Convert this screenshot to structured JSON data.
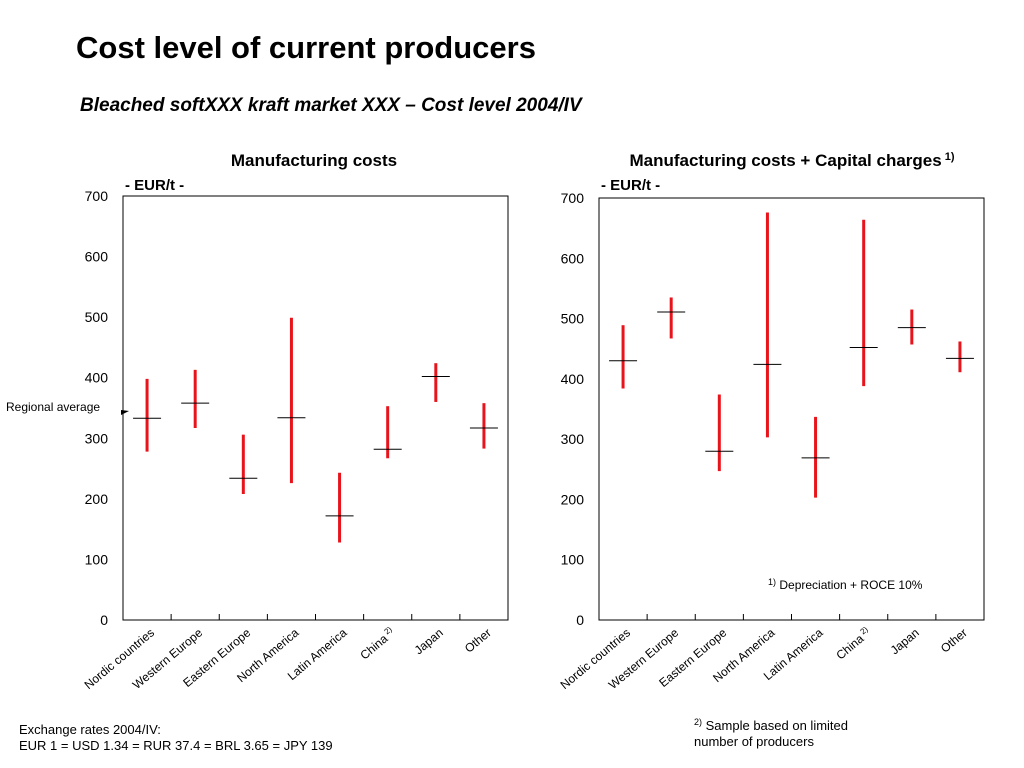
{
  "title": "Cost level of current producers",
  "subtitle": "Bleached softXXX kraft market XXX – Cost level 2004/IV",
  "colors": {
    "range_bar": "#e8141c",
    "average_tick": "#000000",
    "frame": "#000000"
  },
  "annotation": {
    "regional_average": "Regional average"
  },
  "footnotes": {
    "exchange_line1": "Exchange rates 2004/IV:",
    "exchange_line2": "EUR 1 = USD 1.34 = RUR 37.4 = BRL 3.65 = JPY 139",
    "note2_mark": "2)",
    "note2_text": "Sample based on limited",
    "note2_text2": "number of producers"
  },
  "chart_data": [
    {
      "type": "range",
      "title": "Manufacturing costs",
      "title_sup": "",
      "unit_label": "- EUR/t -",
      "ylim": [
        0,
        700
      ],
      "yticks": [
        0,
        100,
        200,
        300,
        400,
        500,
        600,
        700
      ],
      "categories": [
        "Nordic countries",
        "Western Europe",
        "Eastern Europe",
        "North America",
        "Latin America",
        "China",
        "Japan",
        "Other"
      ],
      "category_sups": [
        "",
        "",
        "",
        "",
        "",
        "2)",
        "",
        ""
      ],
      "low": [
        278,
        317,
        208,
        226,
        128,
        267,
        360,
        283
      ],
      "high": [
        398,
        413,
        306,
        499,
        243,
        353,
        424,
        358
      ],
      "average": [
        333,
        358,
        234,
        334,
        172,
        282,
        402,
        317
      ],
      "note": null
    },
    {
      "type": "range",
      "title": "Manufacturing costs + Capital charges",
      "title_sup": "1)",
      "unit_label": "- EUR/t -",
      "ylim": [
        0,
        700
      ],
      "yticks": [
        0,
        100,
        200,
        300,
        400,
        500,
        600,
        700
      ],
      "categories": [
        "Nordic countries",
        "Western Europe",
        "Eastern Europe",
        "North America",
        "Latin America",
        "China",
        "Japan",
        "Other"
      ],
      "category_sups": [
        "",
        "",
        "",
        "",
        "",
        "2)",
        "",
        ""
      ],
      "low": [
        384,
        467,
        247,
        303,
        203,
        388,
        457,
        411
      ],
      "high": [
        489,
        535,
        374,
        676,
        337,
        664,
        515,
        462
      ],
      "average": [
        430,
        511,
        280,
        424,
        269,
        452,
        485,
        434
      ],
      "note": {
        "mark": "1)",
        "text": "Depreciation + ROCE 10%"
      }
    }
  ]
}
